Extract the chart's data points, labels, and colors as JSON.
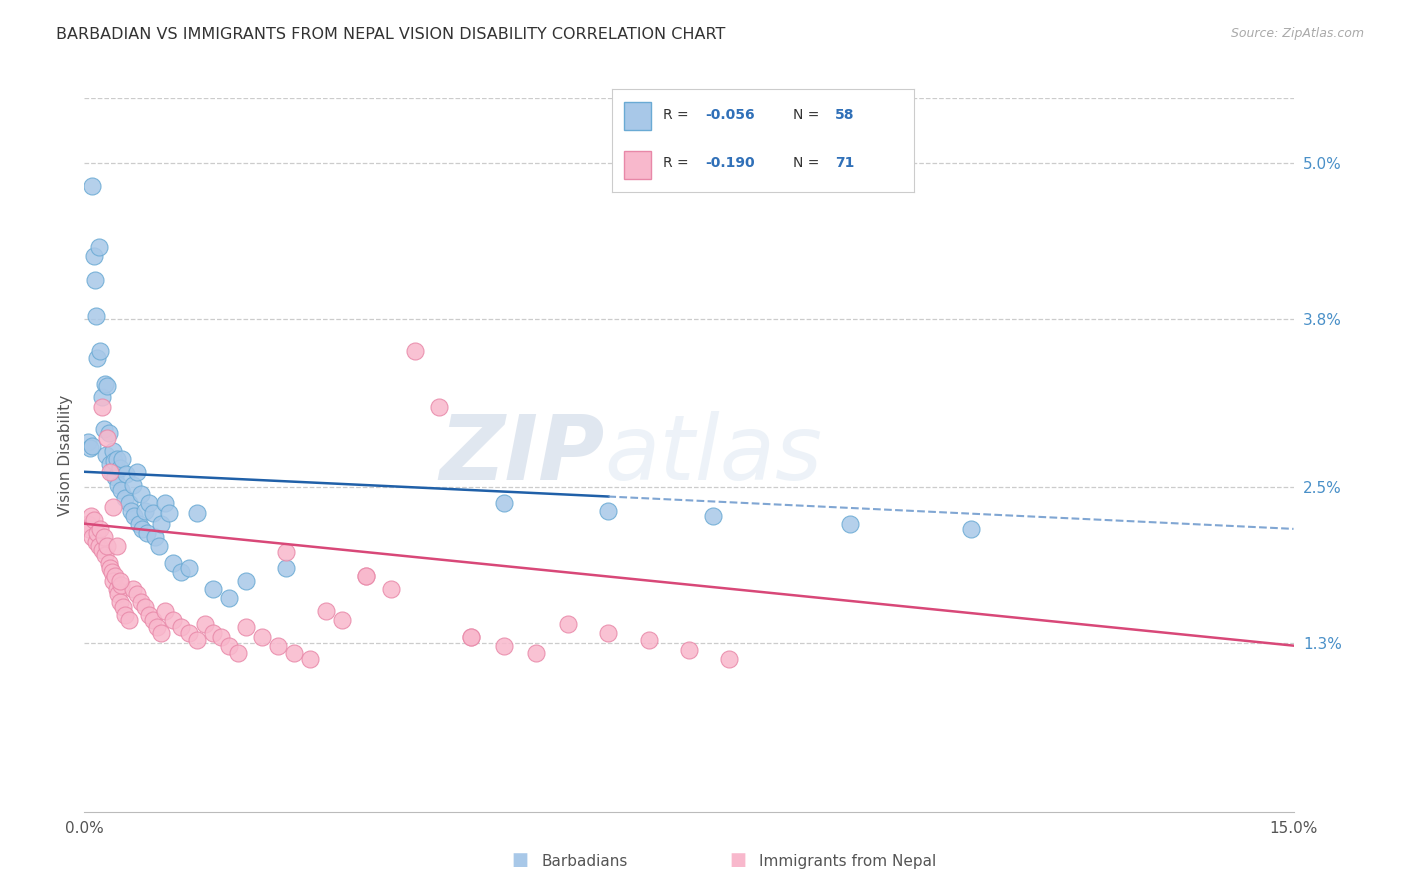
{
  "title": "BARBADIAN VS IMMIGRANTS FROM NEPAL VISION DISABILITY CORRELATION CHART",
  "source": "Source: ZipAtlas.com",
  "ylabel": "Vision Disability",
  "xlim": [
    0.0,
    15.0
  ],
  "ylim": [
    0.0,
    5.5
  ],
  "ytick_values": [
    1.3,
    2.5,
    3.8,
    5.0
  ],
  "blue_color": "#a8c8e8",
  "blue_edge": "#6aaad4",
  "pink_color": "#f8b8cc",
  "pink_edge": "#e888a8",
  "blue_line_color": "#2060a8",
  "blue_line_dash_color": "#6090c8",
  "pink_line_color": "#d84878",
  "grid_color": "#cccccc",
  "watermark_color": "#ccd8ec",
  "background_color": "#ffffff",
  "barbadians_x": [
    0.05,
    0.07,
    0.09,
    0.1,
    0.12,
    0.13,
    0.15,
    0.16,
    0.18,
    0.2,
    0.22,
    0.24,
    0.25,
    0.27,
    0.28,
    0.3,
    0.32,
    0.34,
    0.35,
    0.37,
    0.38,
    0.4,
    0.42,
    0.44,
    0.45,
    0.47,
    0.5,
    0.52,
    0.55,
    0.58,
    0.6,
    0.62,
    0.65,
    0.68,
    0.7,
    0.72,
    0.75,
    0.78,
    0.8,
    0.85,
    0.88,
    0.92,
    0.95,
    1.0,
    1.05,
    1.1,
    1.2,
    1.3,
    1.4,
    1.6,
    1.8,
    2.0,
    2.5,
    5.2,
    6.5,
    7.8,
    9.5,
    11.0
  ],
  "barbadians_y": [
    2.85,
    2.8,
    2.82,
    4.82,
    4.28,
    4.1,
    3.82,
    3.5,
    4.35,
    3.55,
    3.2,
    2.95,
    3.3,
    2.75,
    3.28,
    2.92,
    2.68,
    2.62,
    2.78,
    2.7,
    2.58,
    2.72,
    2.52,
    2.65,
    2.48,
    2.72,
    2.42,
    2.6,
    2.38,
    2.32,
    2.52,
    2.28,
    2.62,
    2.22,
    2.45,
    2.18,
    2.32,
    2.15,
    2.38,
    2.3,
    2.12,
    2.05,
    2.22,
    2.38,
    2.3,
    1.92,
    1.85,
    1.88,
    2.3,
    1.72,
    1.65,
    1.78,
    1.88,
    2.38,
    2.32,
    2.28,
    2.22,
    2.18
  ],
  "nepal_x": [
    0.04,
    0.06,
    0.08,
    0.1,
    0.12,
    0.14,
    0.16,
    0.18,
    0.2,
    0.22,
    0.24,
    0.26,
    0.28,
    0.3,
    0.32,
    0.34,
    0.36,
    0.38,
    0.4,
    0.42,
    0.44,
    0.46,
    0.48,
    0.5,
    0.55,
    0.6,
    0.65,
    0.7,
    0.75,
    0.8,
    0.85,
    0.9,
    0.95,
    1.0,
    1.1,
    1.2,
    1.3,
    1.4,
    1.5,
    1.6,
    1.7,
    1.8,
    1.9,
    2.0,
    2.2,
    2.4,
    2.6,
    2.8,
    3.0,
    3.2,
    3.5,
    3.8,
    4.1,
    4.4,
    4.8,
    5.2,
    5.6,
    6.0,
    6.5,
    7.0,
    7.5,
    8.0,
    3.5,
    2.5,
    4.8,
    0.28,
    0.32,
    0.36,
    0.22,
    0.4,
    0.44
  ],
  "nepal_y": [
    2.22,
    2.18,
    2.28,
    2.12,
    2.25,
    2.08,
    2.15,
    2.05,
    2.18,
    2.02,
    2.12,
    1.98,
    2.05,
    1.92,
    1.88,
    1.85,
    1.78,
    1.82,
    1.72,
    1.68,
    1.62,
    1.75,
    1.58,
    1.52,
    1.48,
    1.72,
    1.68,
    1.62,
    1.58,
    1.52,
    1.48,
    1.42,
    1.38,
    1.55,
    1.48,
    1.42,
    1.38,
    1.32,
    1.45,
    1.38,
    1.35,
    1.28,
    1.22,
    1.42,
    1.35,
    1.28,
    1.22,
    1.18,
    1.55,
    1.48,
    1.82,
    1.72,
    3.55,
    3.12,
    1.35,
    1.28,
    1.22,
    1.45,
    1.38,
    1.32,
    1.25,
    1.18,
    1.82,
    2.0,
    1.35,
    2.88,
    2.62,
    2.35,
    3.12,
    2.05,
    1.78
  ],
  "blue_line_y0": 2.62,
  "blue_line_y_at_max_data": 2.38,
  "blue_line_y_at_15": 2.18,
  "blue_solid_x_max": 11.0,
  "pink_line_y0": 2.22,
  "pink_line_y_at_15": 1.28,
  "title_fontsize": 11.5,
  "tick_fontsize": 11,
  "label_fontsize": 11
}
